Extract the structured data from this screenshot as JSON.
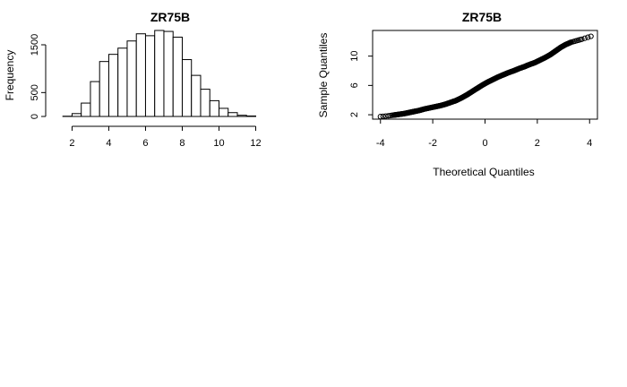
{
  "chart_data": [
    {
      "type": "bar",
      "title": "ZR75B",
      "xlabel": "",
      "ylabel": "Frequency",
      "x_ticks": [
        "2",
        "4",
        "6",
        "8",
        "10",
        "12"
      ],
      "y_ticks": [
        "0",
        "500",
        "1500"
      ],
      "xlim": [
        1.1,
        13.0
      ],
      "ylim": [
        0,
        1800
      ],
      "bin_width": 0.5,
      "bins_start": [
        1.5,
        2.0,
        2.5,
        3.0,
        3.5,
        4.0,
        4.5,
        5.0,
        5.5,
        6.0,
        6.5,
        7.0,
        7.5,
        8.0,
        8.5,
        9.0,
        9.5,
        10.0,
        10.5,
        11.0,
        11.5
      ],
      "values": [
        5,
        60,
        280,
        730,
        1150,
        1300,
        1430,
        1580,
        1730,
        1690,
        1800,
        1780,
        1660,
        1190,
        860,
        570,
        330,
        170,
        80,
        25,
        10
      ]
    },
    {
      "type": "scatter",
      "title": "ZR75B",
      "xlabel": "Theoretical Quantiles",
      "ylabel": "Sample Quantiles",
      "x_ticks": [
        "-4",
        "-2",
        "0",
        "2",
        "4"
      ],
      "y_ticks": [
        "2",
        "6",
        "10"
      ],
      "xlim": [
        -4.3,
        4.3
      ],
      "ylim": [
        1.4,
        13.5
      ],
      "points": [
        [
          -4.0,
          1.75
        ],
        [
          -3.7,
          1.85
        ],
        [
          -3.5,
          1.95
        ],
        [
          -3.3,
          2.05
        ],
        [
          -3.1,
          2.15
        ],
        [
          -2.9,
          2.3
        ],
        [
          -2.7,
          2.45
        ],
        [
          -2.5,
          2.6
        ],
        [
          -2.3,
          2.8
        ],
        [
          -2.1,
          2.95
        ],
        [
          -1.9,
          3.1
        ],
        [
          -1.7,
          3.25
        ],
        [
          -1.5,
          3.45
        ],
        [
          -1.3,
          3.7
        ],
        [
          -1.1,
          3.95
        ],
        [
          -0.9,
          4.3
        ],
        [
          -0.7,
          4.7
        ],
        [
          -0.5,
          5.15
        ],
        [
          -0.3,
          5.6
        ],
        [
          -0.1,
          6.05
        ],
        [
          0.1,
          6.45
        ],
        [
          0.3,
          6.8
        ],
        [
          0.5,
          7.15
        ],
        [
          0.7,
          7.45
        ],
        [
          0.9,
          7.75
        ],
        [
          1.1,
          8.0
        ],
        [
          1.3,
          8.3
        ],
        [
          1.5,
          8.55
        ],
        [
          1.7,
          8.85
        ],
        [
          1.9,
          9.1
        ],
        [
          2.1,
          9.45
        ],
        [
          2.3,
          9.8
        ],
        [
          2.5,
          10.2
        ],
        [
          2.7,
          10.7
        ],
        [
          2.9,
          11.2
        ],
        [
          3.1,
          11.6
        ],
        [
          3.3,
          11.9
        ],
        [
          3.5,
          12.1
        ],
        [
          3.7,
          12.3
        ],
        [
          4.05,
          12.7
        ]
      ]
    }
  ]
}
